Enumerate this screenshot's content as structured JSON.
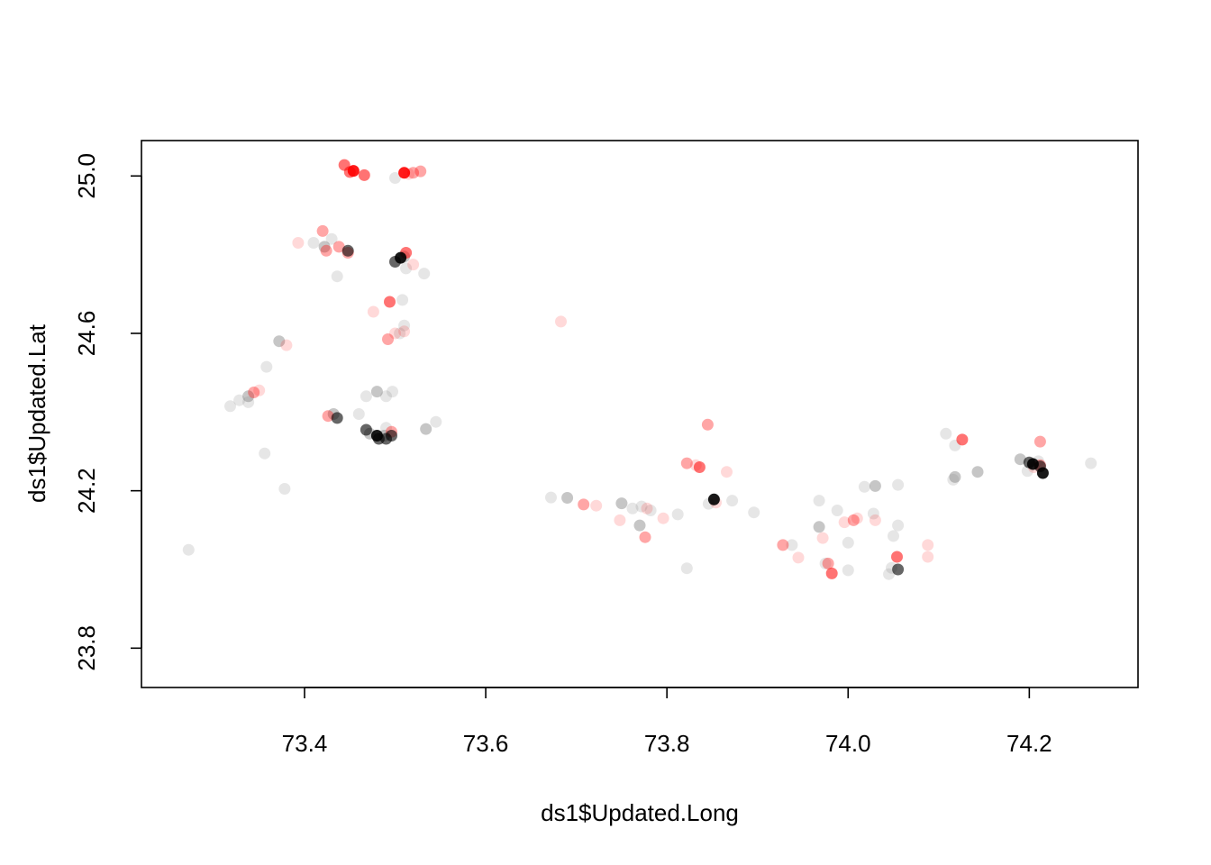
{
  "chart_data": {
    "type": "scatter",
    "title": "",
    "xlabel": "ds1$Updated.Long",
    "ylabel": "ds1$Updated.Lat",
    "xlim": [
      73.22,
      74.32
    ],
    "ylim": [
      23.7,
      25.09
    ],
    "x_ticks": [
      73.4,
      73.6,
      73.8,
      74.0,
      74.2
    ],
    "x_tick_labels": [
      "73.4",
      "73.6",
      "73.8",
      "74.0",
      "74.2"
    ],
    "y_ticks": [
      23.8,
      24.2,
      24.6,
      25.0
    ],
    "y_tick_labels": [
      "23.8",
      "24.2",
      "24.6",
      "25.0"
    ],
    "grid": false,
    "legend": "none",
    "point_colors": {
      "gray": "#808080",
      "red": "#ff0000",
      "dark": "#000000"
    },
    "series": [
      {
        "color": "gray",
        "alpha": 0.2,
        "points": [
          [
            73.272,
            24.05
          ],
          [
            73.318,
            24.415
          ],
          [
            73.328,
            24.43
          ],
          [
            73.338,
            24.425
          ],
          [
            73.358,
            24.515
          ],
          [
            73.356,
            24.295
          ],
          [
            73.378,
            24.205
          ],
          [
            73.43,
            24.84
          ],
          [
            73.436,
            24.745
          ],
          [
            73.46,
            24.395
          ],
          [
            73.468,
            24.44
          ],
          [
            73.49,
            24.44
          ],
          [
            73.497,
            24.452
          ],
          [
            73.508,
            24.685
          ],
          [
            73.51,
            24.62
          ],
          [
            73.512,
            24.765
          ],
          [
            73.532,
            24.752
          ],
          [
            73.545,
            24.375
          ],
          [
            73.5,
            24.995
          ],
          [
            73.672,
            24.183
          ],
          [
            73.762,
            24.155
          ],
          [
            73.772,
            24.16
          ],
          [
            73.782,
            24.15
          ],
          [
            73.812,
            24.14
          ],
          [
            73.822,
            24.003
          ],
          [
            73.846,
            24.167
          ],
          [
            73.872,
            24.175
          ],
          [
            73.896,
            24.145
          ],
          [
            73.938,
            24.062
          ],
          [
            73.968,
            24.175
          ],
          [
            73.975,
            24.015
          ],
          [
            73.988,
            24.15
          ],
          [
            74.0,
            24.068
          ],
          [
            74.0,
            23.998
          ],
          [
            74.018,
            24.21
          ],
          [
            74.028,
            24.142
          ],
          [
            74.045,
            23.988
          ],
          [
            74.048,
            24.004
          ],
          [
            74.05,
            24.085
          ],
          [
            74.055,
            24.215
          ],
          [
            74.055,
            24.112
          ],
          [
            74.108,
            24.345
          ],
          [
            74.116,
            24.228
          ],
          [
            74.118,
            24.315
          ],
          [
            74.268,
            24.27
          ],
          [
            74.198,
            24.25
          ],
          [
            74.21,
            24.275
          ],
          [
            73.49,
            24.36
          ],
          [
            73.41,
            24.83
          ],
          [
            73.505,
            24.6
          ]
        ]
      },
      {
        "color": "gray",
        "alpha": 0.45,
        "points": [
          [
            73.372,
            24.58
          ],
          [
            73.338,
            24.44
          ],
          [
            73.422,
            24.82
          ],
          [
            73.51,
            24.795
          ],
          [
            73.432,
            24.395
          ],
          [
            73.48,
            24.452
          ],
          [
            73.534,
            24.357
          ],
          [
            73.69,
            24.182
          ],
          [
            73.75,
            24.168
          ],
          [
            73.77,
            24.112
          ],
          [
            73.968,
            24.108
          ],
          [
            74.03,
            24.212
          ],
          [
            74.118,
            24.235
          ],
          [
            74.143,
            24.248
          ],
          [
            74.19,
            24.28
          ],
          [
            73.488,
            24.34
          ],
          [
            73.472,
            24.345
          ]
        ]
      },
      {
        "color": "red",
        "alpha": 0.15,
        "points": [
          [
            73.393,
            24.83
          ],
          [
            73.38,
            24.57
          ],
          [
            73.476,
            24.655
          ],
          [
            73.52,
            24.775
          ],
          [
            73.683,
            24.63
          ],
          [
            73.51,
            24.605
          ],
          [
            73.5,
            24.6
          ],
          [
            73.722,
            24.162
          ],
          [
            73.748,
            24.125
          ],
          [
            73.778,
            24.155
          ],
          [
            73.796,
            24.13
          ],
          [
            73.832,
            24.265
          ],
          [
            73.866,
            24.248
          ],
          [
            73.854,
            24.17
          ],
          [
            73.945,
            24.03
          ],
          [
            73.972,
            24.08
          ],
          [
            73.996,
            24.12
          ],
          [
            74.01,
            24.13
          ],
          [
            74.03,
            24.125
          ],
          [
            74.088,
            24.062
          ],
          [
            74.088,
            24.032
          ],
          [
            74.205,
            24.26
          ],
          [
            73.35,
            24.455
          ],
          [
            73.515,
            25.005
          ]
        ]
      },
      {
        "color": "red",
        "alpha": 0.35,
        "points": [
          [
            73.344,
            24.45
          ],
          [
            73.42,
            24.86
          ],
          [
            73.424,
            24.81
          ],
          [
            73.426,
            24.39
          ],
          [
            73.438,
            24.82
          ],
          [
            73.448,
            24.805
          ],
          [
            73.492,
            24.585
          ],
          [
            73.52,
            25.008
          ],
          [
            73.528,
            25.012
          ],
          [
            73.708,
            24.165
          ],
          [
            73.776,
            24.082
          ],
          [
            73.822,
            24.27
          ],
          [
            73.845,
            24.368
          ],
          [
            73.928,
            24.062
          ],
          [
            73.978,
            24.015
          ],
          [
            74.006,
            24.125
          ],
          [
            74.212,
            24.325
          ],
          [
            74.212,
            24.265
          ],
          [
            73.496,
            24.35
          ]
        ]
      },
      {
        "color": "red",
        "alpha": 0.55,
        "points": [
          [
            73.444,
            25.028
          ],
          [
            73.45,
            25.01
          ],
          [
            73.466,
            25.002
          ],
          [
            73.494,
            24.68
          ],
          [
            74.126,
            24.33
          ],
          [
            73.982,
            23.99
          ],
          [
            74.054,
            24.032
          ],
          [
            73.836,
            24.26
          ],
          [
            73.512,
            24.805
          ]
        ]
      },
      {
        "color": "red",
        "alpha": 0.9,
        "points": [
          [
            73.454,
            25.013
          ],
          [
            73.51,
            25.008
          ]
        ]
      },
      {
        "color": "dark",
        "alpha": 0.6,
        "points": [
          [
            73.448,
            24.81
          ],
          [
            73.436,
            24.385
          ],
          [
            73.468,
            24.355
          ],
          [
            73.5,
            24.782
          ],
          [
            73.49,
            24.332
          ],
          [
            73.482,
            24.332
          ],
          [
            73.496,
            24.34
          ],
          [
            74.055,
            24.0
          ],
          [
            74.2,
            24.272
          ],
          [
            74.212,
            24.262
          ]
        ]
      },
      {
        "color": "dark",
        "alpha": 0.9,
        "points": [
          [
            73.506,
            24.792
          ],
          [
            73.48,
            24.34
          ],
          [
            73.852,
            24.178
          ],
          [
            74.215,
            24.245
          ],
          [
            74.204,
            24.268
          ]
        ]
      }
    ]
  }
}
